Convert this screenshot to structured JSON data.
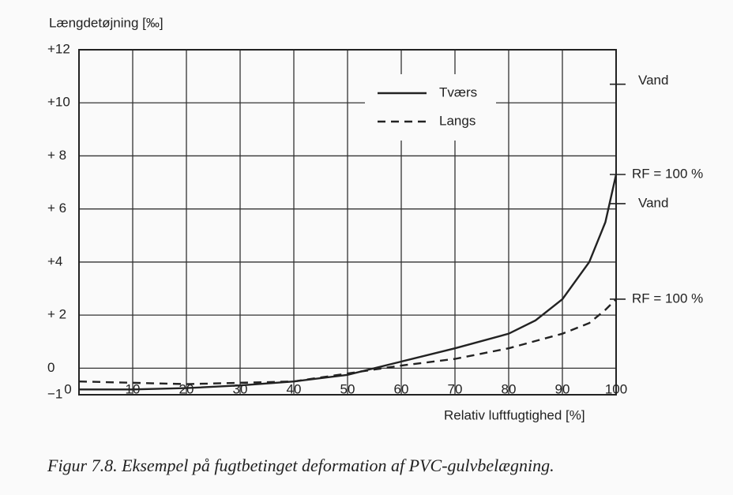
{
  "chart_data": {
    "type": "line",
    "y_label": "Længdetøjning [‰]",
    "x_label": "Relativ luftfugtighed [%]",
    "caption": "Figur 7.8. Eksempel på fugtbetinget deformation af PVC-gulvbelægning.",
    "xlim": [
      0,
      100
    ],
    "xticks": [
      0,
      10,
      20,
      30,
      40,
      50,
      60,
      70,
      80,
      90,
      100
    ],
    "ylim": [
      -1,
      12
    ],
    "yticks": [
      {
        "value": -1,
        "label": "−1"
      },
      0,
      {
        "value": 2,
        "label": "+ 2"
      },
      {
        "value": 4,
        "label": "+4"
      },
      {
        "value": 6,
        "label": "+ 6"
      },
      {
        "value": 8,
        "label": "+ 8"
      },
      {
        "value": 10,
        "label": "+10"
      },
      {
        "value": 12,
        "label": "+12"
      }
    ],
    "grid": true,
    "series": [
      {
        "name": "Tværs",
        "color": "#222222",
        "dash": false,
        "x": [
          0,
          10,
          20,
          30,
          40,
          50,
          55,
          60,
          70,
          80,
          85,
          90,
          95,
          98,
          100
        ],
        "values": [
          -0.8,
          -0.8,
          -0.75,
          -0.65,
          -0.5,
          -0.25,
          0,
          0.25,
          0.75,
          1.3,
          1.8,
          2.6,
          4,
          5.5,
          7.3
        ]
      },
      {
        "name": "Langs",
        "color": "#222222",
        "dash": true,
        "x": [
          0,
          20,
          40,
          50,
          60,
          70,
          80,
          90,
          95,
          98,
          100
        ],
        "values": [
          -0.5,
          -0.6,
          -0.5,
          -0.2,
          0.1,
          0.35,
          0.75,
          1.3,
          1.7,
          2.2,
          2.6
        ]
      }
    ],
    "annotations": [
      {
        "value": 10.7,
        "text": "Vand"
      },
      {
        "value": 7.3,
        "text": "RF = 100 %"
      },
      {
        "value": 6.2,
        "text": "Vand"
      },
      {
        "value": 2.6,
        "text": "RF = 100 %"
      }
    ]
  }
}
